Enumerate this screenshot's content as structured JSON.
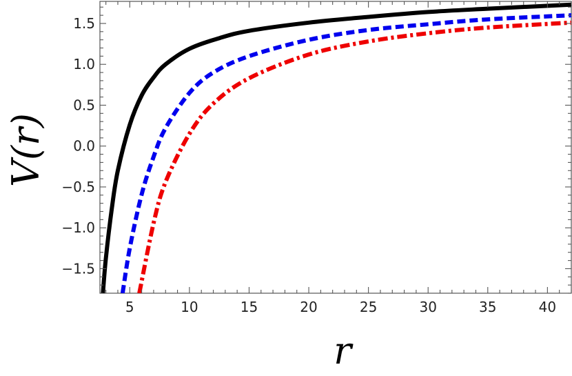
{
  "chart_data": {
    "type": "line",
    "title": "",
    "xlabel": "r",
    "ylabel": "V(r)",
    "xlim": [
      2.5,
      42
    ],
    "ylim": [
      -1.8,
      1.77
    ],
    "grid": false,
    "legend": "none",
    "x_ticks": [
      5,
      10,
      15,
      20,
      25,
      30,
      35,
      40
    ],
    "x_tick_labels": [
      "5",
      "10",
      "15",
      "20",
      "25",
      "30",
      "35",
      "40"
    ],
    "y_ticks": [
      -1.5,
      -1.0,
      -0.5,
      0.0,
      0.5,
      1.0,
      1.5
    ],
    "y_tick_labels": [
      "−1.5",
      "−1.0",
      "−0.5",
      "0.0",
      "0.5",
      "1.0",
      "1.5"
    ],
    "series": [
      {
        "style": "solid",
        "color": "#000000",
        "x": [
          2.75,
          3.0,
          3.5,
          4.0,
          5.0,
          6.0,
          7.0,
          8.0,
          10.0,
          12.5,
          15.0,
          20.0,
          25.0,
          30.0,
          35.0,
          42.0
        ],
        "y": [
          -1.8,
          -1.37,
          -0.76,
          -0.3,
          0.26,
          0.62,
          0.84,
          1.0,
          1.19,
          1.32,
          1.41,
          1.51,
          1.58,
          1.64,
          1.68,
          1.73
        ]
      },
      {
        "style": "dashed",
        "color": "#0000ee",
        "x": [
          4.4,
          5.0,
          6.0,
          7.0,
          8.0,
          10.0,
          12.0,
          15.0,
          20.0,
          25.0,
          30.0,
          35.0,
          42.0
        ],
        "y": [
          -1.8,
          -1.25,
          -0.59,
          -0.13,
          0.22,
          0.65,
          0.9,
          1.1,
          1.3,
          1.42,
          1.49,
          1.55,
          1.6
        ]
      },
      {
        "style": "dashdot",
        "color": "#ee0000",
        "x": [
          5.8,
          7.0,
          8.0,
          10.0,
          12.0,
          15.0,
          20.0,
          25.0,
          30.0,
          35.0,
          42.0
        ],
        "y": [
          -1.8,
          -0.94,
          -0.44,
          0.15,
          0.52,
          0.83,
          1.12,
          1.28,
          1.38,
          1.45,
          1.51
        ]
      }
    ]
  }
}
